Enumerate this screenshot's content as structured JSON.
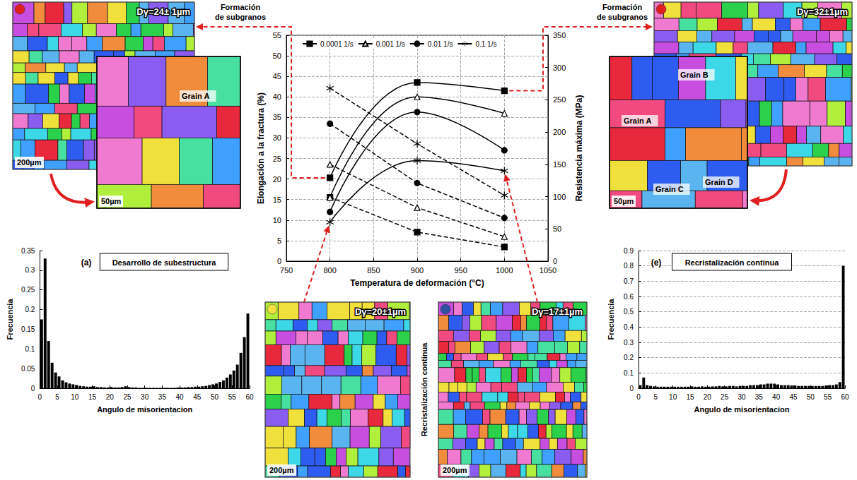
{
  "chart_data": [
    {
      "type": "line",
      "xlabel": "Temperatura de deformación (°C)",
      "ylabel": "Elongación a la fractura (%)",
      "y2label": "Resistencia máxima (MPa)",
      "x": [
        800,
        900,
        1000
      ],
      "xlim": [
        750,
        1050
      ],
      "xticks": [
        750,
        800,
        850,
        900,
        950,
        1000,
        1050
      ],
      "ylim": [
        0,
        55
      ],
      "yticks": [
        0,
        5,
        10,
        15,
        20,
        25,
        30,
        35,
        40,
        45,
        50,
        55
      ],
      "y2lim": [
        0,
        350
      ],
      "y2ticks": [
        0,
        50,
        100,
        150,
        200,
        250,
        300,
        350
      ],
      "grid": true,
      "legend": "top-left",
      "series": [
        {
          "name": "0.0001 1/s",
          "color": "#000000",
          "marker": "square",
          "line_style": "solid",
          "axis": "y",
          "values": [
            20.3,
            43.5,
            41.5
          ]
        },
        {
          "name": "0.001 1/s",
          "color": "#000000",
          "marker": "triangle_open",
          "line_style": "solid",
          "axis": "y",
          "values": [
            15.5,
            40,
            36
          ]
        },
        {
          "name": "0.01 1/s",
          "color": "#000000",
          "marker": "circle",
          "line_style": "solid",
          "axis": "y",
          "values": [
            12,
            36.3,
            27
          ]
        },
        {
          "name": "0.1 1/s",
          "color": "#000000",
          "marker": "asterisk",
          "line_style": "solid",
          "axis": "y",
          "values": [
            9.5,
            24.5,
            22
          ]
        },
        {
          "name": "0.0001 1/s",
          "color": "#000000",
          "marker": "square",
          "line_style": "dashed",
          "axis": "y2",
          "values": [
            99,
            45,
            22
          ]
        },
        {
          "name": "0.001 1/s",
          "color": "#000000",
          "marker": "triangle_open",
          "line_style": "dashed",
          "axis": "y2",
          "values": [
            150,
            83,
            38
          ]
        },
        {
          "name": "0.01 1/s",
          "color": "#000000",
          "marker": "circle",
          "line_style": "dashed",
          "axis": "y2",
          "values": [
            213,
            121,
            67
          ]
        },
        {
          "name": "0.1 1/s",
          "color": "#000000",
          "marker": "asterisk",
          "line_style": "dashed",
          "axis": "y2",
          "values": [
            268,
            182,
            102
          ]
        }
      ]
    },
    {
      "type": "histogram",
      "panel": "(a)",
      "title": "Desarrollo de subestructura",
      "xlabel": "Angulo de misorientacion",
      "ylabel": "Frecuencia",
      "color": "#000000",
      "bins": [
        0,
        1,
        2,
        3,
        4,
        5,
        6,
        7,
        8,
        9,
        10,
        11,
        12,
        13,
        14,
        15,
        16,
        17,
        18,
        19,
        20,
        21,
        22,
        23,
        24,
        25,
        26,
        27,
        28,
        29,
        30,
        31,
        32,
        33,
        34,
        35,
        36,
        37,
        38,
        39,
        40,
        41,
        42,
        43,
        44,
        45,
        46,
        47,
        48,
        49,
        50,
        51,
        52,
        53,
        54,
        55,
        56,
        57,
        58,
        59,
        60
      ],
      "values": [
        0.175,
        0.33,
        0.12,
        0.065,
        0.04,
        0.03,
        0.02,
        0.015,
        0.012,
        0.01,
        0.008,
        0.006,
        0.005,
        0.004,
        0.004,
        0.005,
        0.003,
        0.003,
        0.002,
        0.002,
        0.003,
        0.002,
        0.002,
        0.003,
        0.005,
        0.003,
        0.002,
        0.002,
        0.001,
        0.001,
        0.001,
        0.001,
        0.001,
        0.001,
        0.001,
        0.001,
        0.001,
        0.001,
        0.001,
        0.002,
        0.002,
        0.002,
        0.003,
        0.003,
        0.004,
        0.004,
        0.005,
        0.006,
        0.008,
        0.01,
        0.012,
        0.016,
        0.02,
        0.027,
        0.035,
        0.045,
        0.06,
        0.09,
        0.13,
        0.19
      ],
      "xlim": [
        0,
        60
      ],
      "xticks": [
        0,
        5,
        10,
        15,
        20,
        25,
        30,
        35,
        40,
        45,
        50,
        55,
        60
      ],
      "ylim": [
        0,
        0.35
      ],
      "yticks": [
        0,
        0.05,
        0.1,
        0.15,
        0.2,
        0.25,
        0.3,
        0.35
      ],
      "grid": false
    },
    {
      "type": "histogram",
      "panel": "(e)",
      "title": "Recristalización continua",
      "xlabel": "Angulo de misorientacion",
      "ylabel": "Frecuencia",
      "color": "#000000",
      "bins": [
        0,
        1,
        2,
        3,
        4,
        5,
        6,
        7,
        8,
        9,
        10,
        11,
        12,
        13,
        14,
        15,
        16,
        17,
        18,
        19,
        20,
        21,
        22,
        23,
        24,
        25,
        26,
        27,
        28,
        29,
        30,
        31,
        32,
        33,
        34,
        35,
        36,
        37,
        38,
        39,
        40,
        41,
        42,
        43,
        44,
        45,
        46,
        47,
        48,
        49,
        50,
        51,
        52,
        53,
        54,
        55,
        56,
        57,
        58,
        59,
        60
      ],
      "values": [
        0.02,
        0.07,
        0.02,
        0.015,
        0.012,
        0.01,
        0.01,
        0.01,
        0.01,
        0.01,
        0.01,
        0.01,
        0.01,
        0.01,
        0.01,
        0.012,
        0.01,
        0.01,
        0.012,
        0.01,
        0.01,
        0.012,
        0.012,
        0.015,
        0.012,
        0.012,
        0.015,
        0.015,
        0.012,
        0.015,
        0.015,
        0.015,
        0.02,
        0.02,
        0.02,
        0.025,
        0.025,
        0.03,
        0.03,
        0.03,
        0.025,
        0.02,
        0.02,
        0.02,
        0.018,
        0.018,
        0.015,
        0.015,
        0.015,
        0.015,
        0.015,
        0.015,
        0.015,
        0.015,
        0.018,
        0.02,
        0.02,
        0.025,
        0.04,
        0.8
      ],
      "xlim": [
        0,
        60
      ],
      "xticks": [
        0,
        5,
        10,
        15,
        20,
        25,
        30,
        35,
        40,
        45,
        50,
        55,
        60
      ],
      "ylim": [
        0,
        0.9
      ],
      "yticks": [
        0,
        0.1,
        0.2,
        0.3,
        0.4,
        0.5,
        0.6,
        0.7,
        0.8,
        0.9
      ],
      "grid": true
    }
  ],
  "micrographs": [
    {
      "grain_size": "Dγ=24± 1µm",
      "scale": "200µm"
    },
    {
      "grain_size": "Dγ=32±1µm"
    },
    {
      "grain_size": "Dγ=20±1µm",
      "scale": "200µm"
    },
    {
      "grain_size": "Dγ=17±1µm",
      "scale": "200µm"
    }
  ],
  "insets": [
    {
      "scale": "50µm",
      "grains": [
        "Grain A"
      ]
    },
    {
      "scale": "50µm",
      "grains": [
        "Grain B",
        "Grain A",
        "Grain C",
        "Grain D"
      ]
    }
  ],
  "callouts": [
    "Formación de subgranos",
    "Formación de subgranos",
    "Recristalización continua"
  ]
}
